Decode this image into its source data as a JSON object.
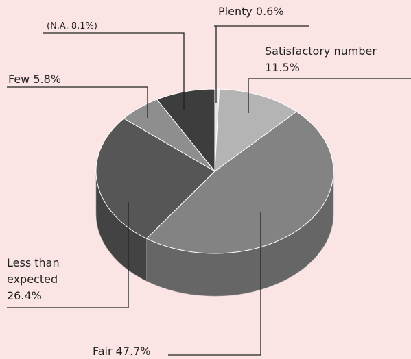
{
  "chart_data": {
    "type": "pie",
    "labels": [
      [
        "Plenty  0.6%"
      ],
      [
        "Satisfactory number",
        "11.5%"
      ],
      [
        "Fair  47.7%"
      ],
      [
        "Less than",
        "expected",
        "26.4%"
      ],
      [
        "Few  5.8%"
      ],
      [
        "(N.A.  8.1%)"
      ]
    ],
    "values": [
      0.6,
      11.5,
      47.7,
      26.4,
      5.8,
      8.1
    ],
    "colors": [
      "#e6e6e6",
      "#b4b4b4",
      "#838383",
      "#565656",
      "#8e8e8e",
      "#3d3d3d"
    ]
  }
}
